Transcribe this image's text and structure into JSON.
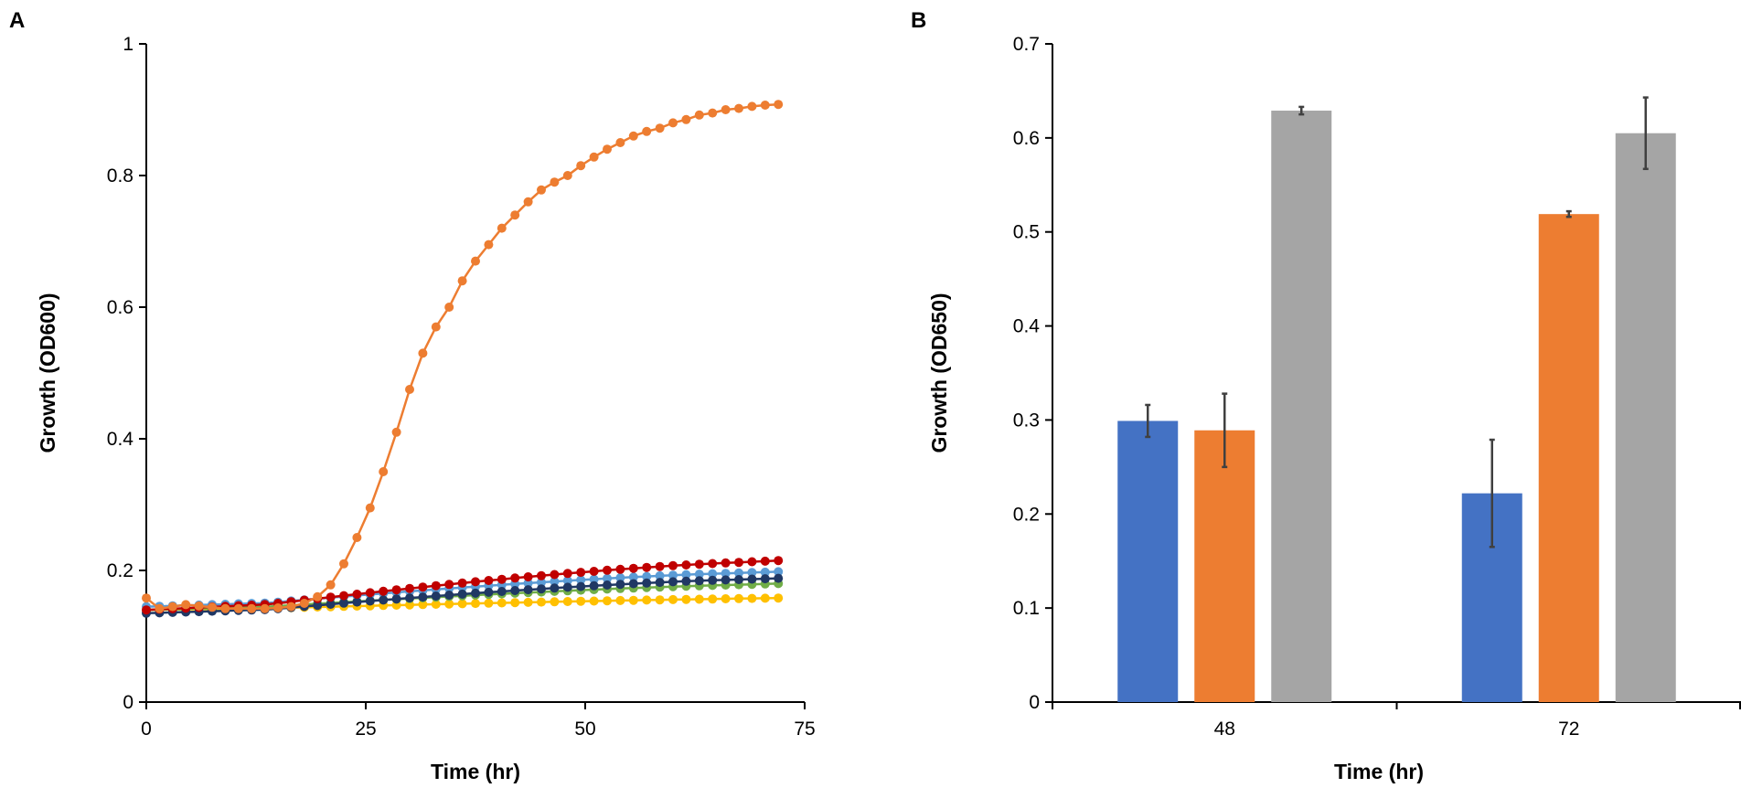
{
  "chart_data": [
    {
      "panel": "A",
      "type": "line",
      "xlabel": "Time (hr)",
      "ylabel": "Growth (OD600)",
      "xlim": [
        0,
        75
      ],
      "ylim": [
        0,
        1
      ],
      "xticks": [
        "0",
        "25",
        "50",
        "75"
      ],
      "yticks": [
        "0",
        "0.2",
        "0.4",
        "0.6",
        "0.8",
        "1"
      ],
      "x": [
        0,
        1.5,
        3,
        4.5,
        6,
        7.5,
        9,
        10.5,
        12,
        13.5,
        15,
        16.5,
        18,
        19.5,
        21,
        22.5,
        24,
        25.5,
        27,
        28.5,
        30,
        31.5,
        33,
        34.5,
        36,
        37.5,
        39,
        40.5,
        42,
        43.5,
        45,
        46.5,
        48,
        49.5,
        51,
        52.5,
        54,
        55.5,
        57,
        58.5,
        60,
        61.5,
        63,
        64.5,
        66,
        67.5,
        69,
        70.5,
        72
      ],
      "series": [
        {
          "name": "gold",
          "color": "#FFC000",
          "start": 0.14,
          "end": 0.158,
          "rise": 0.25
        },
        {
          "name": "green",
          "color": "#70AD47",
          "start": 0.14,
          "end": 0.18,
          "rise": 0.35
        },
        {
          "name": "light-blue",
          "color": "#5B9BD5",
          "start": 0.145,
          "end": 0.198,
          "rise": 0.45
        },
        {
          "name": "navy",
          "color": "#203864",
          "start": 0.135,
          "end": 0.188,
          "rise": 0.45
        },
        {
          "name": "red",
          "color": "#C00000",
          "start": 0.14,
          "end": 0.215,
          "rise": 0.42
        },
        {
          "name": "orange",
          "color": "#ED7D31",
          "values": [
            0.158,
            0.142,
            0.145,
            0.148,
            0.146,
            0.144,
            0.142,
            0.142,
            0.142,
            0.142,
            0.143,
            0.145,
            0.15,
            0.16,
            0.178,
            0.21,
            0.25,
            0.295,
            0.35,
            0.41,
            0.475,
            0.53,
            0.57,
            0.6,
            0.64,
            0.67,
            0.695,
            0.72,
            0.74,
            0.76,
            0.778,
            0.79,
            0.8,
            0.815,
            0.828,
            0.84,
            0.85,
            0.86,
            0.867,
            0.872,
            0.88,
            0.885,
            0.892,
            0.895,
            0.9,
            0.902,
            0.905,
            0.907,
            0.908
          ]
        }
      ]
    },
    {
      "panel": "B",
      "type": "bar",
      "xlabel": "Time (hr)",
      "ylabel": "Growth (OD650)",
      "ylim": [
        0,
        0.7
      ],
      "yticks": [
        "0",
        "0.1",
        "0.2",
        "0.3",
        "0.4",
        "0.5",
        "0.6",
        "0.7"
      ],
      "categories": [
        "48",
        "72"
      ],
      "series": [
        {
          "name": "blue",
          "color": "#4472C4",
          "values": [
            0.299,
            0.222
          ],
          "errors": [
            0.017,
            0.057
          ]
        },
        {
          "name": "orange",
          "color": "#ED7D31",
          "values": [
            0.289,
            0.519
          ],
          "errors": [
            0.039,
            0.003
          ]
        },
        {
          "name": "gray",
          "color": "#A5A5A5",
          "values": [
            0.629,
            0.605
          ],
          "errors": [
            0.004,
            0.038
          ]
        }
      ]
    }
  ]
}
